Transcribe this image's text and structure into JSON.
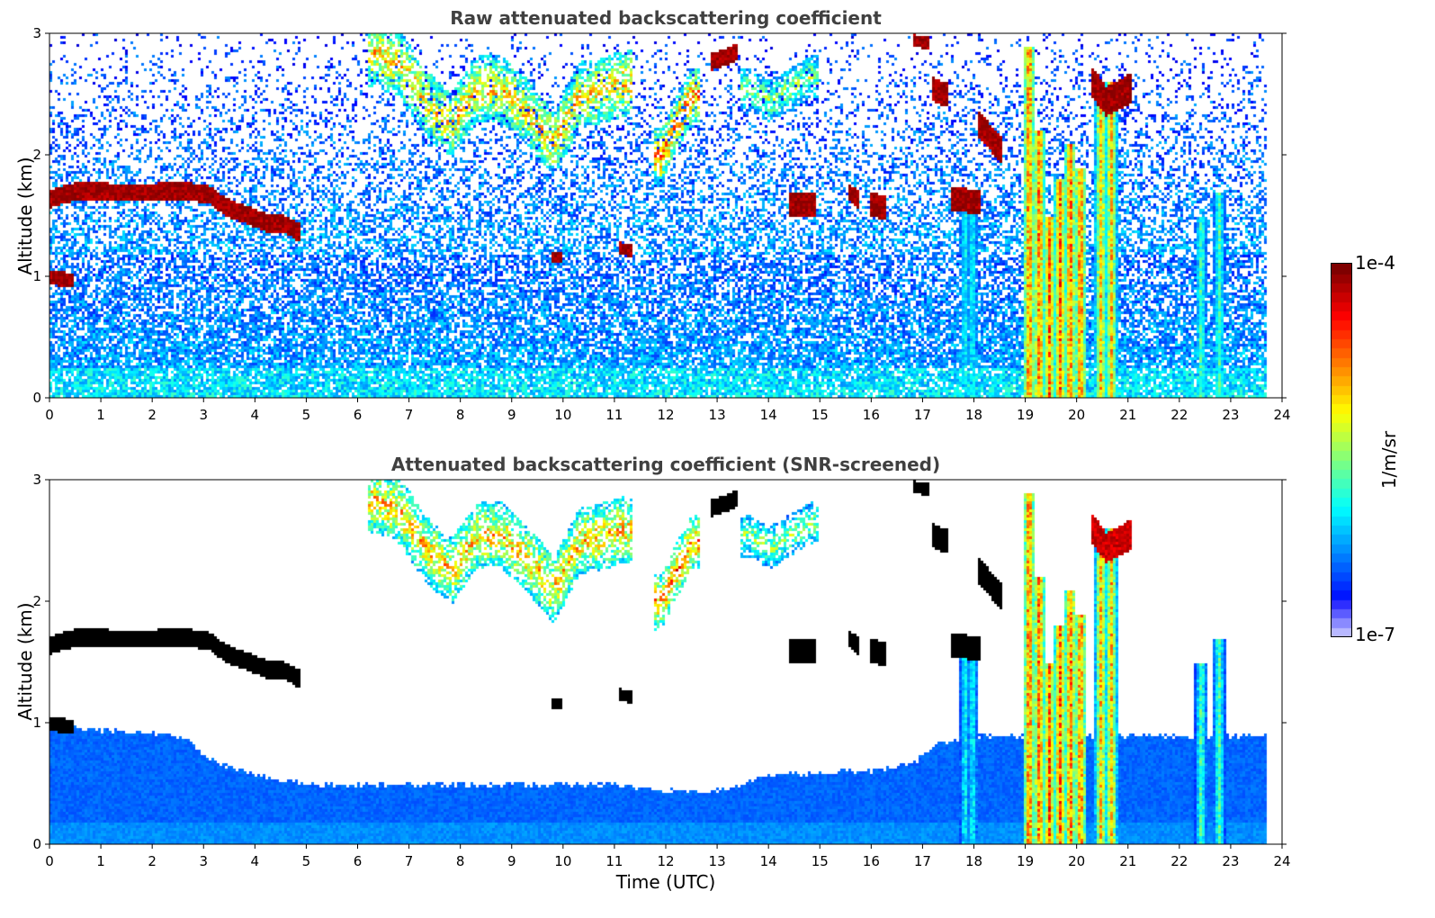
{
  "chart_data": [
    {
      "type": "heatmap",
      "title": "Raw attenuated backscattering coefficient",
      "xlabel": "",
      "ylabel": "Altitude (km)",
      "xlim": [
        0,
        24
      ],
      "ylim": [
        0,
        3
      ],
      "xticks": [
        "0",
        "1",
        "2",
        "3",
        "4",
        "5",
        "6",
        "7",
        "8",
        "9",
        "10",
        "11",
        "12",
        "13",
        "14",
        "15",
        "16",
        "17",
        "18",
        "19",
        "20",
        "21",
        "22",
        "23",
        "24"
      ],
      "yticks": [
        "0",
        "1",
        "2",
        "3"
      ],
      "data_end_hour": 23.7,
      "noise_screened": false,
      "features": [
        {
          "kind": "cloud_layer",
          "x": [
            0.0,
            0.4,
            0.8,
            1.2,
            1.6,
            2.0,
            2.4,
            2.8,
            3.1,
            3.4,
            3.8,
            4.2,
            4.5,
            4.8
          ],
          "y": [
            1.65,
            1.7,
            1.72,
            1.7,
            1.7,
            1.7,
            1.72,
            1.7,
            1.68,
            1.58,
            1.52,
            1.45,
            1.45,
            1.38
          ],
          "thickness": 0.15,
          "level": 1.0
        },
        {
          "kind": "cloud_layer",
          "x": [
            0.0,
            0.4
          ],
          "y": [
            1.0,
            0.98
          ],
          "thickness": 0.12,
          "level": 1.0
        },
        {
          "kind": "aerosol_plume",
          "x": [
            6.3,
            6.8,
            7.3,
            7.8,
            8.3,
            8.8,
            9.3,
            9.8,
            10.3,
            10.8,
            11.2
          ],
          "y": [
            2.85,
            2.75,
            2.45,
            2.25,
            2.55,
            2.55,
            2.35,
            2.1,
            2.5,
            2.55,
            2.6
          ],
          "thickness": 0.55,
          "level": 0.7
        },
        {
          "kind": "aerosol_plume",
          "x": [
            11.9,
            12.1,
            12.3,
            12.5
          ],
          "y": [
            2.0,
            2.2,
            2.35,
            2.5
          ],
          "thickness": 0.45,
          "level": 0.78
        },
        {
          "kind": "aerosol_plume",
          "x": [
            13.6,
            14.0,
            14.4,
            14.8
          ],
          "y": [
            2.55,
            2.45,
            2.55,
            2.65
          ],
          "thickness": 0.35,
          "level": 0.55
        },
        {
          "kind": "cloud_blob",
          "x": [
            12.9,
            13.35
          ],
          "y": [
            2.78,
            2.85
          ],
          "thickness": 0.14,
          "level": 1.0
        },
        {
          "kind": "cloud_blob",
          "x": [
            14.4,
            14.85
          ],
          "y": [
            1.6,
            1.6
          ],
          "thickness": 0.18,
          "level": 1.0
        },
        {
          "kind": "cloud_blob",
          "x": [
            15.55,
            15.7
          ],
          "y": [
            1.7,
            1.65
          ],
          "thickness": 0.15,
          "level": 1.0
        },
        {
          "kind": "cloud_blob",
          "x": [
            16.0,
            16.2
          ],
          "y": [
            1.6,
            1.58
          ],
          "thickness": 0.2,
          "level": 1.0
        },
        {
          "kind": "cloud_blob",
          "x": [
            16.85,
            17.05
          ],
          "y": [
            2.95,
            2.93
          ],
          "thickness": 0.1,
          "level": 1.0
        },
        {
          "kind": "cloud_blob",
          "x": [
            17.2,
            17.45
          ],
          "y": [
            2.55,
            2.5
          ],
          "thickness": 0.2,
          "level": 1.0
        },
        {
          "kind": "cloud_blob",
          "x": [
            17.55,
            18.05
          ],
          "y": [
            1.65,
            1.62
          ],
          "thickness": 0.2,
          "level": 1.0
        },
        {
          "kind": "cloud_blob",
          "x": [
            18.1,
            18.5
          ],
          "y": [
            2.25,
            2.05
          ],
          "thickness": 0.22,
          "level": 1.0
        },
        {
          "kind": "cloud_blob",
          "x": [
            9.8,
            9.9
          ],
          "y": [
            1.17,
            1.17
          ],
          "thickness": 0.1,
          "level": 1.0
        },
        {
          "kind": "cloud_blob",
          "x": [
            11.1,
            11.3
          ],
          "y": [
            1.24,
            1.22
          ],
          "thickness": 0.1,
          "level": 1.0
        },
        {
          "kind": "cloud_blob",
          "x": [
            20.3,
            20.55,
            20.8,
            21.0
          ],
          "y": [
            2.6,
            2.45,
            2.5,
            2.55
          ],
          "thickness": 0.25,
          "level": 1.0
        },
        {
          "kind": "precip_streak",
          "x": [
            19.05,
            19.25,
            19.45,
            19.65,
            19.85,
            20.05
          ],
          "y_top": [
            2.9,
            2.2,
            1.5,
            1.8,
            2.1,
            1.9
          ],
          "level": 0.85
        },
        {
          "kind": "precip_streak",
          "x": [
            20.45,
            20.65
          ],
          "y_top": [
            2.5,
            2.6
          ],
          "level": 0.75
        },
        {
          "kind": "precip_streak",
          "x": [
            22.4,
            22.75
          ],
          "y_top": [
            1.5,
            1.7
          ],
          "level": 0.5
        },
        {
          "kind": "precip_streak",
          "x": [
            17.8,
            17.95
          ],
          "y_top": [
            1.6,
            1.55
          ],
          "level": 0.42
        }
      ]
    },
    {
      "type": "heatmap",
      "title": "Attenuated backscattering coefficient (SNR-screened)",
      "xlabel": "Time (UTC)",
      "ylabel": "Altitude (km)",
      "xlim": [
        0,
        24
      ],
      "ylim": [
        0,
        3
      ],
      "xticks": [
        "0",
        "1",
        "2",
        "3",
        "4",
        "5",
        "6",
        "7",
        "8",
        "9",
        "10",
        "11",
        "12",
        "13",
        "14",
        "15",
        "16",
        "17",
        "18",
        "19",
        "20",
        "21",
        "22",
        "23",
        "24"
      ],
      "yticks": [
        "0",
        "1",
        "2",
        "3"
      ],
      "data_end_hour": 23.7,
      "noise_screened": true,
      "boundary_layer_top": {
        "x": [
          0,
          1,
          2,
          2.7,
          3,
          4,
          5,
          6,
          7,
          8,
          9,
          10,
          11,
          12,
          13,
          14,
          15,
          16,
          16.8,
          17.3,
          18,
          19,
          20,
          21,
          22,
          23,
          23.7
        ],
        "y": [
          1.0,
          0.95,
          0.92,
          0.88,
          0.72,
          0.58,
          0.5,
          0.5,
          0.5,
          0.5,
          0.5,
          0.5,
          0.5,
          0.45,
          0.45,
          0.58,
          0.6,
          0.62,
          0.68,
          0.85,
          0.9,
          0.9,
          0.9,
          0.9,
          0.9,
          0.9,
          0.9
        ]
      },
      "features": [
        {
          "kind": "cloud_layer",
          "x": [
            0.0,
            0.4,
            0.8,
            1.2,
            1.6,
            2.0,
            2.4,
            2.8,
            3.1,
            3.4,
            3.8,
            4.2,
            4.5,
            4.8
          ],
          "y": [
            1.65,
            1.7,
            1.72,
            1.7,
            1.7,
            1.7,
            1.72,
            1.7,
            1.68,
            1.58,
            1.52,
            1.45,
            1.45,
            1.38
          ],
          "thickness": 0.15,
          "level": 1.15
        },
        {
          "kind": "cloud_layer",
          "x": [
            0.0,
            0.4
          ],
          "y": [
            1.0,
            0.98
          ],
          "thickness": 0.12,
          "level": 1.15
        },
        {
          "kind": "aerosol_plume",
          "x": [
            6.3,
            6.8,
            7.3,
            7.8,
            8.3,
            8.8,
            9.3,
            9.8,
            10.3,
            10.8,
            11.2
          ],
          "y": [
            2.85,
            2.75,
            2.45,
            2.25,
            2.55,
            2.55,
            2.35,
            2.1,
            2.5,
            2.55,
            2.6
          ],
          "thickness": 0.55,
          "level": 0.7
        },
        {
          "kind": "aerosol_plume",
          "x": [
            11.9,
            12.1,
            12.3,
            12.5
          ],
          "y": [
            2.0,
            2.2,
            2.35,
            2.5
          ],
          "thickness": 0.45,
          "level": 0.78
        },
        {
          "kind": "aerosol_plume",
          "x": [
            13.6,
            14.0,
            14.4,
            14.8
          ],
          "y": [
            2.55,
            2.45,
            2.55,
            2.65
          ],
          "thickness": 0.35,
          "level": 0.55
        },
        {
          "kind": "cloud_blob",
          "x": [
            12.9,
            13.35
          ],
          "y": [
            2.78,
            2.85
          ],
          "thickness": 0.14,
          "level": 1.15
        },
        {
          "kind": "cloud_blob",
          "x": [
            14.4,
            14.85
          ],
          "y": [
            1.6,
            1.6
          ],
          "thickness": 0.18,
          "level": 1.15
        },
        {
          "kind": "cloud_blob",
          "x": [
            15.55,
            15.7
          ],
          "y": [
            1.7,
            1.65
          ],
          "thickness": 0.15,
          "level": 1.15
        },
        {
          "kind": "cloud_blob",
          "x": [
            16.0,
            16.2
          ],
          "y": [
            1.6,
            1.58
          ],
          "thickness": 0.2,
          "level": 1.15
        },
        {
          "kind": "cloud_blob",
          "x": [
            16.85,
            17.05
          ],
          "y": [
            2.95,
            2.93
          ],
          "thickness": 0.1,
          "level": 1.15
        },
        {
          "kind": "cloud_blob",
          "x": [
            17.2,
            17.45
          ],
          "y": [
            2.55,
            2.5
          ],
          "thickness": 0.2,
          "level": 1.15
        },
        {
          "kind": "cloud_blob",
          "x": [
            17.55,
            18.05
          ],
          "y": [
            1.65,
            1.62
          ],
          "thickness": 0.2,
          "level": 1.15
        },
        {
          "kind": "cloud_blob",
          "x": [
            18.1,
            18.5
          ],
          "y": [
            2.25,
            2.05
          ],
          "thickness": 0.22,
          "level": 1.15
        },
        {
          "kind": "cloud_blob",
          "x": [
            9.8,
            9.9
          ],
          "y": [
            1.17,
            1.17
          ],
          "thickness": 0.1,
          "level": 1.15
        },
        {
          "kind": "cloud_blob",
          "x": [
            11.1,
            11.3
          ],
          "y": [
            1.24,
            1.22
          ],
          "thickness": 0.1,
          "level": 1.15
        },
        {
          "kind": "cloud_blob",
          "x": [
            20.3,
            20.55,
            20.8,
            21.0
          ],
          "y": [
            2.6,
            2.45,
            2.5,
            2.55
          ],
          "thickness": 0.25,
          "level": 0.95
        },
        {
          "kind": "precip_streak",
          "x": [
            19.05,
            19.25,
            19.45,
            19.65,
            19.85,
            20.05
          ],
          "y_top": [
            2.9,
            2.2,
            1.5,
            1.8,
            2.1,
            1.9
          ],
          "level": 0.85
        },
        {
          "kind": "precip_streak",
          "x": [
            20.45,
            20.65
          ],
          "y_top": [
            2.5,
            2.6
          ],
          "level": 0.75
        },
        {
          "kind": "precip_streak",
          "x": [
            22.4,
            22.75
          ],
          "y_top": [
            1.5,
            1.7
          ],
          "level": 0.5
        },
        {
          "kind": "precip_streak",
          "x": [
            17.8,
            17.95
          ],
          "y_top": [
            1.6,
            1.55
          ],
          "level": 0.42
        }
      ]
    }
  ],
  "colorbar": {
    "label": "1/m/sr",
    "min_label": "1e-7",
    "max_label": "1e-4",
    "colormap": "jet",
    "screened_saturation_color": "#000000"
  }
}
